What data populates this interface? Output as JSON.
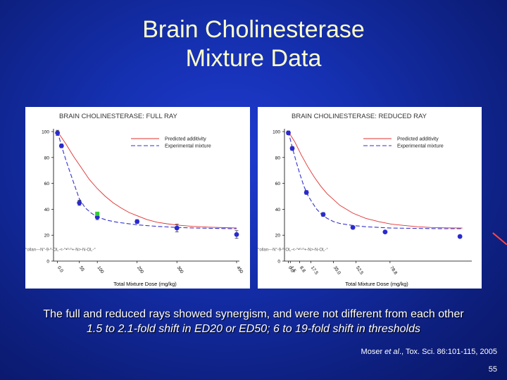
{
  "slide": {
    "title_line1": "Brain Cholinesterase",
    "title_line2": "Mixture Data",
    "caption_line1": "The full and reduced rays showed synergism, and were not different from each other",
    "caption_line2": "1.5 to 2.1-fold shift in ED20 or ED50; 6 to 19-fold shift in thresholds",
    "citation_authors": "Moser",
    "citation_etal": "et al",
    "citation_rest": "., Tox. Sci. 86:101-115, 2005",
    "page_number": "55"
  },
  "colors": {
    "predicted": "#e03030",
    "experimental": "#3333cc",
    "point": "#2a2ad0",
    "highlight": "#33cc33"
  },
  "chart_data": [
    {
      "type": "scatter",
      "title": "BRAIN CHOLINESTERASE: FULL RAY",
      "xlabel": "Total Mixture Dose (mg/kg)",
      "ylabel": "",
      "xlim": [
        -10,
        450
      ],
      "ylim": [
        0,
        100
      ],
      "yticks": [
        0,
        20,
        40,
        60,
        80,
        100
      ],
      "xticks": [
        "0.0",
        "55",
        "100",
        "200",
        "300",
        "450"
      ],
      "xtick_values": [
        0,
        55,
        100,
        200,
        300,
        450
      ],
      "legend": [
        "Predicted additivity",
        "Experimental mixture"
      ],
      "legend_position": "top-right",
      "baseline_text": "°ollan---N°-9-º-OL-<-°•º-º+-N>-N-OL-°",
      "series": [
        {
          "name": "Predicted additivity",
          "style": "line",
          "x": [
            0,
            20,
            40,
            60,
            80,
            100,
            120,
            140,
            160,
            180,
            200,
            225,
            250,
            275,
            300,
            340,
            380,
            420,
            450
          ],
          "y": [
            100,
            91,
            81,
            72,
            63,
            56,
            50,
            45,
            41,
            37.5,
            35,
            32,
            30,
            28.8,
            27.8,
            26.8,
            26.2,
            25.8,
            25.6
          ]
        },
        {
          "name": "Experimental mixture",
          "style": "dashed",
          "x": [
            0,
            10,
            20,
            30,
            40,
            55,
            70,
            85,
            100,
            125,
            150,
            200,
            250,
            300,
            350,
            400,
            450
          ],
          "y": [
            100,
            89,
            79,
            70,
            61,
            48,
            41,
            37,
            34,
            31.5,
            30,
            28,
            26.8,
            26,
            25.5,
            25.2,
            25
          ]
        },
        {
          "name": "Data points",
          "style": "points",
          "x": [
            0,
            10,
            55,
            100,
            200,
            300,
            450
          ],
          "y": [
            99,
            89,
            45,
            34,
            30.5,
            25.5,
            20.5
          ],
          "err": [
            2,
            1.5,
            2,
            2,
            1.5,
            3,
            3
          ]
        },
        {
          "name": "Highlighted point",
          "style": "highlight",
          "x": [
            100
          ],
          "y": [
            36.5
          ]
        }
      ]
    },
    {
      "type": "scatter",
      "title": "BRAIN CHOLINESTERASE: REDUCED RAY",
      "xlabel": "Total Mixture Dose (mg/kg)",
      "ylabel": "",
      "xlim": [
        -3,
        140
      ],
      "ylim": [
        0,
        100
      ],
      "yticks": [
        0,
        20,
        40,
        60,
        80,
        100
      ],
      "xticks": [
        "0.0",
        "1.5",
        "8.8",
        "17.5",
        "35.0",
        "52.5",
        "78.8"
      ],
      "xtick_values": [
        0,
        1.5,
        8.8,
        17.5,
        35,
        52.5,
        78.8
      ],
      "legend": [
        "Predicted additivity",
        "Experimental mixture"
      ],
      "legend_position": "top-right",
      "baseline_text": "°ollan---N°-9-º-OL-<-°•º-º+-N>-N-OL-°",
      "series": [
        {
          "name": "Predicted additivity",
          "style": "line",
          "x": [
            0,
            5,
            10,
            15,
            20,
            25,
            30,
            40,
            50,
            60,
            70,
            80,
            90,
            100,
            110,
            120,
            135
          ],
          "y": [
            100,
            92,
            82,
            73,
            65,
            58,
            52,
            43,
            37,
            33,
            30.5,
            28.5,
            27.5,
            26.5,
            26,
            25.7,
            25.5
          ]
        },
        {
          "name": "Experimental mixture",
          "style": "dashed",
          "x": [
            0,
            3,
            6,
            9,
            12,
            15,
            18,
            22,
            26,
            30,
            35,
            40,
            50,
            60,
            80,
            100,
            120,
            135
          ],
          "y": [
            100,
            88,
            77,
            67,
            58,
            51,
            46,
            40,
            36,
            33,
            30.5,
            29,
            27.5,
            26.5,
            25.5,
            25.2,
            25,
            25
          ]
        },
        {
          "name": "Data points",
          "style": "points",
          "x": [
            0,
            3,
            14,
            27,
            50,
            75,
            133
          ],
          "y": [
            99,
            87,
            53,
            36,
            26,
            22.5,
            19
          ],
          "err": [
            1.5,
            1.5,
            1.5,
            1.5,
            1,
            1,
            1
          ]
        }
      ]
    }
  ]
}
